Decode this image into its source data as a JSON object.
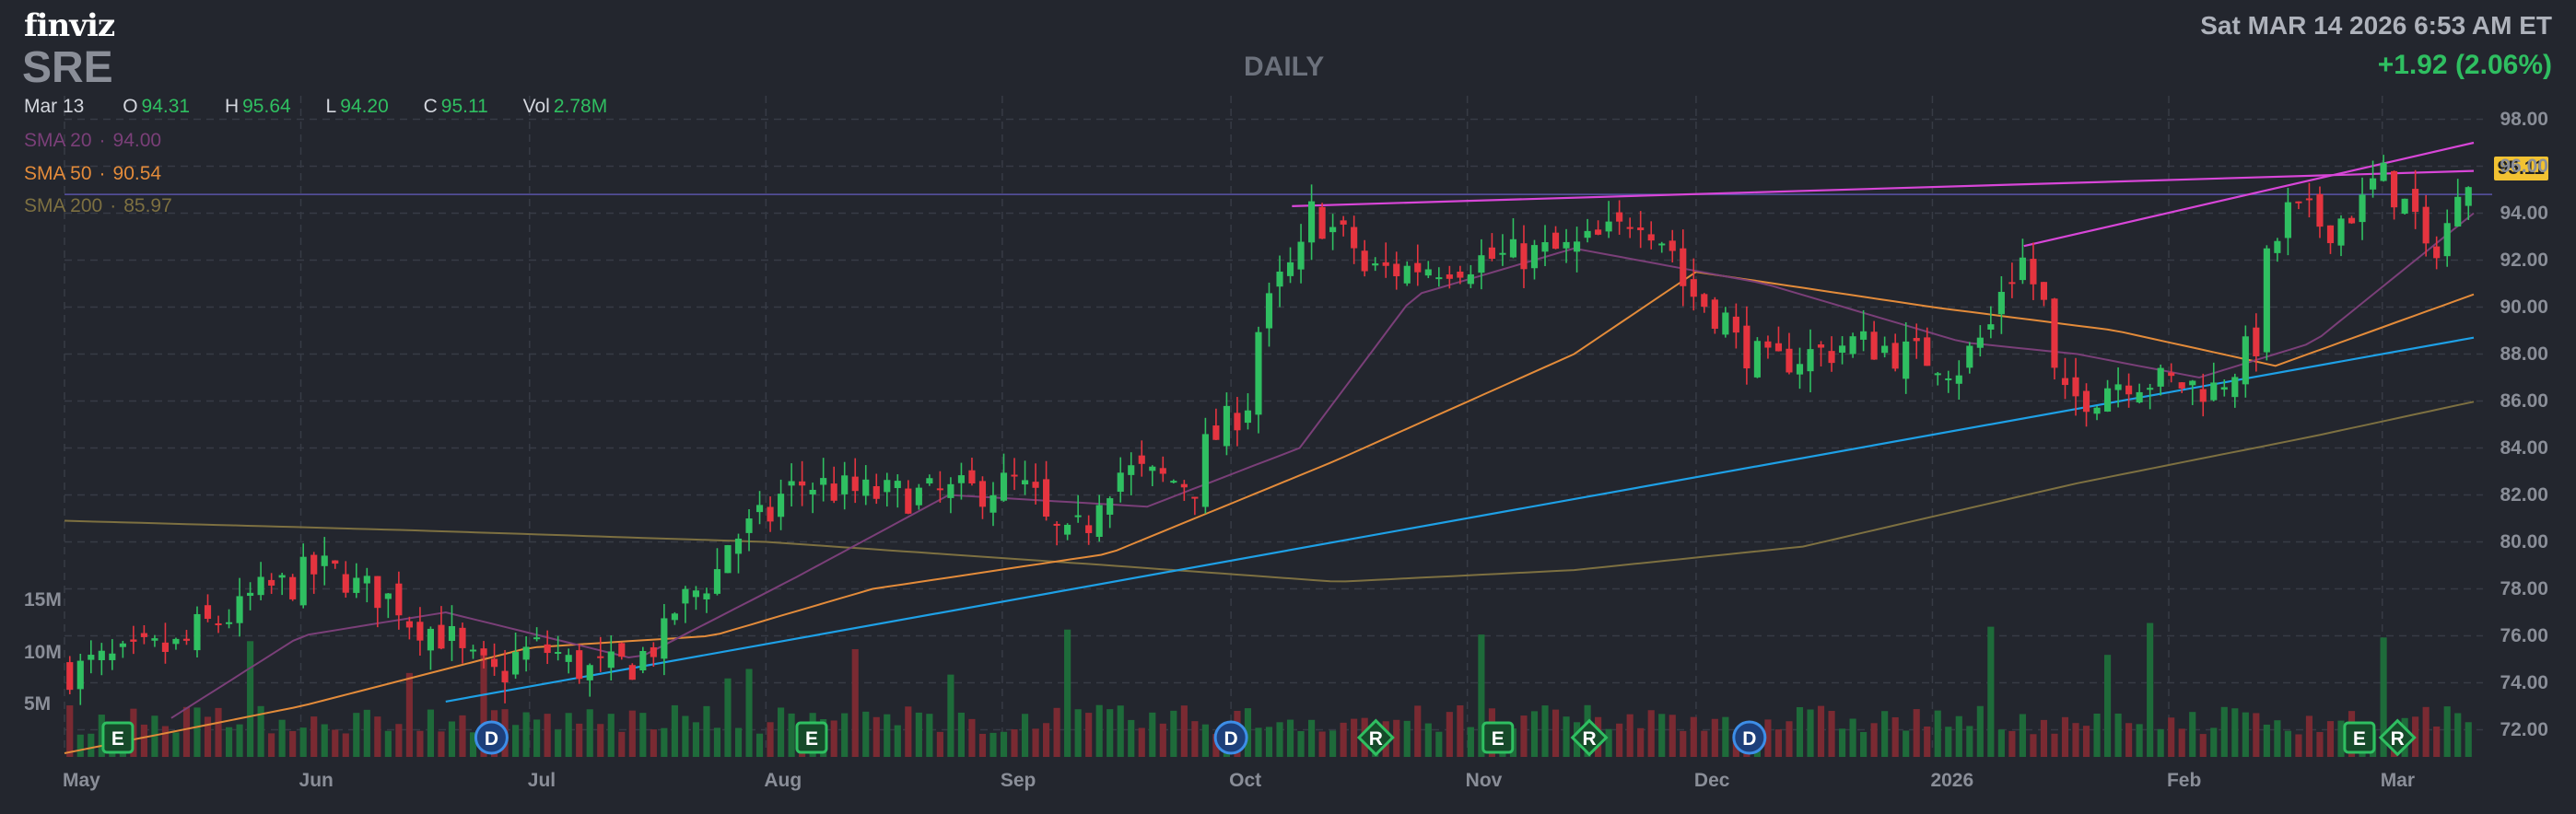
{
  "brand": "finviz",
  "ticker": "SRE",
  "period": "DAILY",
  "datetime": "Sat MAR 14 2026 6:53 AM ET",
  "change": "+1.92 (2.06%)",
  "ohlc": {
    "date": "Mar 13",
    "open_label": "O",
    "open": "94.31",
    "high_label": "H",
    "high": "95.64",
    "low_label": "L",
    "low": "94.20",
    "close_label": "C",
    "close": "95.11",
    "vol_label": "Vol",
    "vol": "2.78M"
  },
  "indicators": [
    {
      "name": "SMA 20",
      "value": "94.00",
      "color": "#7a3f78"
    },
    {
      "name": "SMA 50",
      "value": "90.54",
      "color": "#e38b3a"
    },
    {
      "name": "SMA 200",
      "value": "85.97",
      "color": "#7d7041"
    }
  ],
  "last_price_tag": "95.11",
  "colors": {
    "up": "#2fbf61",
    "down": "#e5343f",
    "background": "#23262e",
    "trendline_pink": "#d846d8",
    "trendline_blue": "#1ea0e6"
  },
  "chart_data": {
    "type": "candlestick",
    "ylim": [
      71,
      99
    ],
    "y_ticks": [
      "98.00",
      "96.00",
      "94.00",
      "92.00",
      "90.00",
      "88.00",
      "86.00",
      "84.00",
      "82.00",
      "80.00",
      "78.00",
      "76.00",
      "74.00",
      "72.00"
    ],
    "volume_ticks": [
      "15M",
      "10M",
      "5M"
    ],
    "x_labels": [
      "May",
      "Jun",
      "Jul",
      "Aug",
      "Sep",
      "Oct",
      "Nov",
      "Dec",
      "2026",
      "Feb",
      "Mar"
    ],
    "x_range": [
      "2025-05-01",
      "2026-03-13"
    ],
    "close_path": [
      [
        "2025-05-01",
        74.5
      ],
      [
        "2025-05-15",
        75.5
      ],
      [
        "2025-05-28",
        78.0
      ],
      [
        "2025-06-04",
        78.8
      ],
      [
        "2025-06-11",
        77.8
      ],
      [
        "2025-06-18",
        76.3
      ],
      [
        "2025-06-26",
        74.3
      ],
      [
        "2025-07-02",
        75.5
      ],
      [
        "2025-07-09",
        74.5
      ],
      [
        "2025-07-15",
        74.8
      ],
      [
        "2025-07-22",
        77.5
      ],
      [
        "2025-07-28",
        80.0
      ],
      [
        "2025-08-06",
        82.5
      ],
      [
        "2025-08-15",
        82.0
      ],
      [
        "2025-08-25",
        82.0
      ],
      [
        "2025-09-03",
        82.5
      ],
      [
        "2025-09-10",
        80.0
      ],
      [
        "2025-09-17",
        83.0
      ],
      [
        "2025-09-26",
        82.5
      ],
      [
        "2025-10-03",
        86.0
      ],
      [
        "2025-10-08",
        91.0
      ],
      [
        "2025-10-13",
        94.0
      ],
      [
        "2025-10-20",
        91.5
      ],
      [
        "2025-11-03",
        92.0
      ],
      [
        "2025-11-17",
        92.5
      ],
      [
        "2025-11-25",
        94.0
      ],
      [
        "2025-12-02",
        90.5
      ],
      [
        "2025-12-11",
        87.5
      ],
      [
        "2025-12-23",
        88.5
      ],
      [
        "2026-01-06",
        87.5
      ],
      [
        "2026-01-14",
        92.0
      ],
      [
        "2026-01-20",
        86.0
      ],
      [
        "2026-01-28",
        87.0
      ],
      [
        "2026-02-09",
        86.5
      ],
      [
        "2026-02-13",
        88.5
      ],
      [
        "2026-02-18",
        94.0
      ],
      [
        "2026-02-24",
        93.5
      ],
      [
        "2026-03-03",
        95.5
      ],
      [
        "2026-03-09",
        92.0
      ],
      [
        "2026-03-13",
        95.11
      ]
    ],
    "sma20_path": [
      [
        "2025-05-15",
        72.5
      ],
      [
        "2025-06-01",
        76.0
      ],
      [
        "2025-06-20",
        77.0
      ],
      [
        "2025-07-15",
        75.0
      ],
      [
        "2025-08-05",
        78.5
      ],
      [
        "2025-08-25",
        82.0
      ],
      [
        "2025-09-20",
        81.5
      ],
      [
        "2025-10-10",
        84.0
      ],
      [
        "2025-10-25",
        90.5
      ],
      [
        "2025-11-15",
        92.5
      ],
      [
        "2025-12-10",
        91.0
      ],
      [
        "2026-01-05",
        88.5
      ],
      [
        "2026-01-20",
        88.0
      ],
      [
        "2026-02-05",
        87.0
      ],
      [
        "2026-02-20",
        88.5
      ],
      [
        "2026-03-13",
        94.0
      ]
    ],
    "sma50_path": [
      [
        "2025-05-01",
        71.0
      ],
      [
        "2025-06-01",
        73.0
      ],
      [
        "2025-07-01",
        75.5
      ],
      [
        "2025-07-25",
        76.0
      ],
      [
        "2025-08-15",
        78.0
      ],
      [
        "2025-09-15",
        79.5
      ],
      [
        "2025-10-15",
        83.5
      ],
      [
        "2025-11-15",
        88.0
      ],
      [
        "2025-12-01",
        91.5
      ],
      [
        "2026-01-01",
        90.0
      ],
      [
        "2026-01-25",
        89.0
      ],
      [
        "2026-02-15",
        87.5
      ],
      [
        "2026-03-13",
        90.54
      ]
    ],
    "sma200_path": [
      [
        "2025-05-01",
        80.9
      ],
      [
        "2025-06-15",
        80.5
      ],
      [
        "2025-08-01",
        80.0
      ],
      [
        "2025-09-15",
        79.0
      ],
      [
        "2025-10-15",
        78.3
      ],
      [
        "2025-11-15",
        78.8
      ],
      [
        "2025-12-15",
        79.8
      ],
      [
        "2026-01-20",
        82.5
      ],
      [
        "2026-02-20",
        84.5
      ],
      [
        "2026-03-13",
        85.97
      ]
    ],
    "trendlines": [
      {
        "color": "#d846d8",
        "from": [
          "2025-10-09",
          94.3
        ],
        "to": [
          "2026-03-13",
          95.8
        ]
      },
      {
        "color": "#d846d8",
        "from": [
          "2026-01-13",
          92.6
        ],
        "to": [
          "2026-03-13",
          97.0
        ]
      },
      {
        "color": "#1ea0e6",
        "from": [
          "2025-06-20",
          73.2
        ],
        "to": [
          "2026-03-13",
          88.7
        ]
      }
    ],
    "horizontal_line": {
      "color": "#5a53a8",
      "y": 94.8
    },
    "events": [
      {
        "letter": "E",
        "date": "2025-05-08",
        "shape": "square"
      },
      {
        "letter": "D",
        "date": "2025-06-26",
        "shape": "circle"
      },
      {
        "letter": "E",
        "date": "2025-08-07",
        "shape": "square"
      },
      {
        "letter": "D",
        "date": "2025-10-01",
        "shape": "circle"
      },
      {
        "letter": "R",
        "date": "2025-10-20",
        "shape": "diamond"
      },
      {
        "letter": "E",
        "date": "2025-11-05",
        "shape": "square"
      },
      {
        "letter": "R",
        "date": "2025-11-17",
        "shape": "diamond"
      },
      {
        "letter": "D",
        "date": "2025-12-08",
        "shape": "circle"
      },
      {
        "letter": "E",
        "date": "2026-02-26",
        "shape": "square"
      },
      {
        "letter": "R",
        "date": "2026-03-03",
        "shape": "diamond"
      }
    ]
  }
}
